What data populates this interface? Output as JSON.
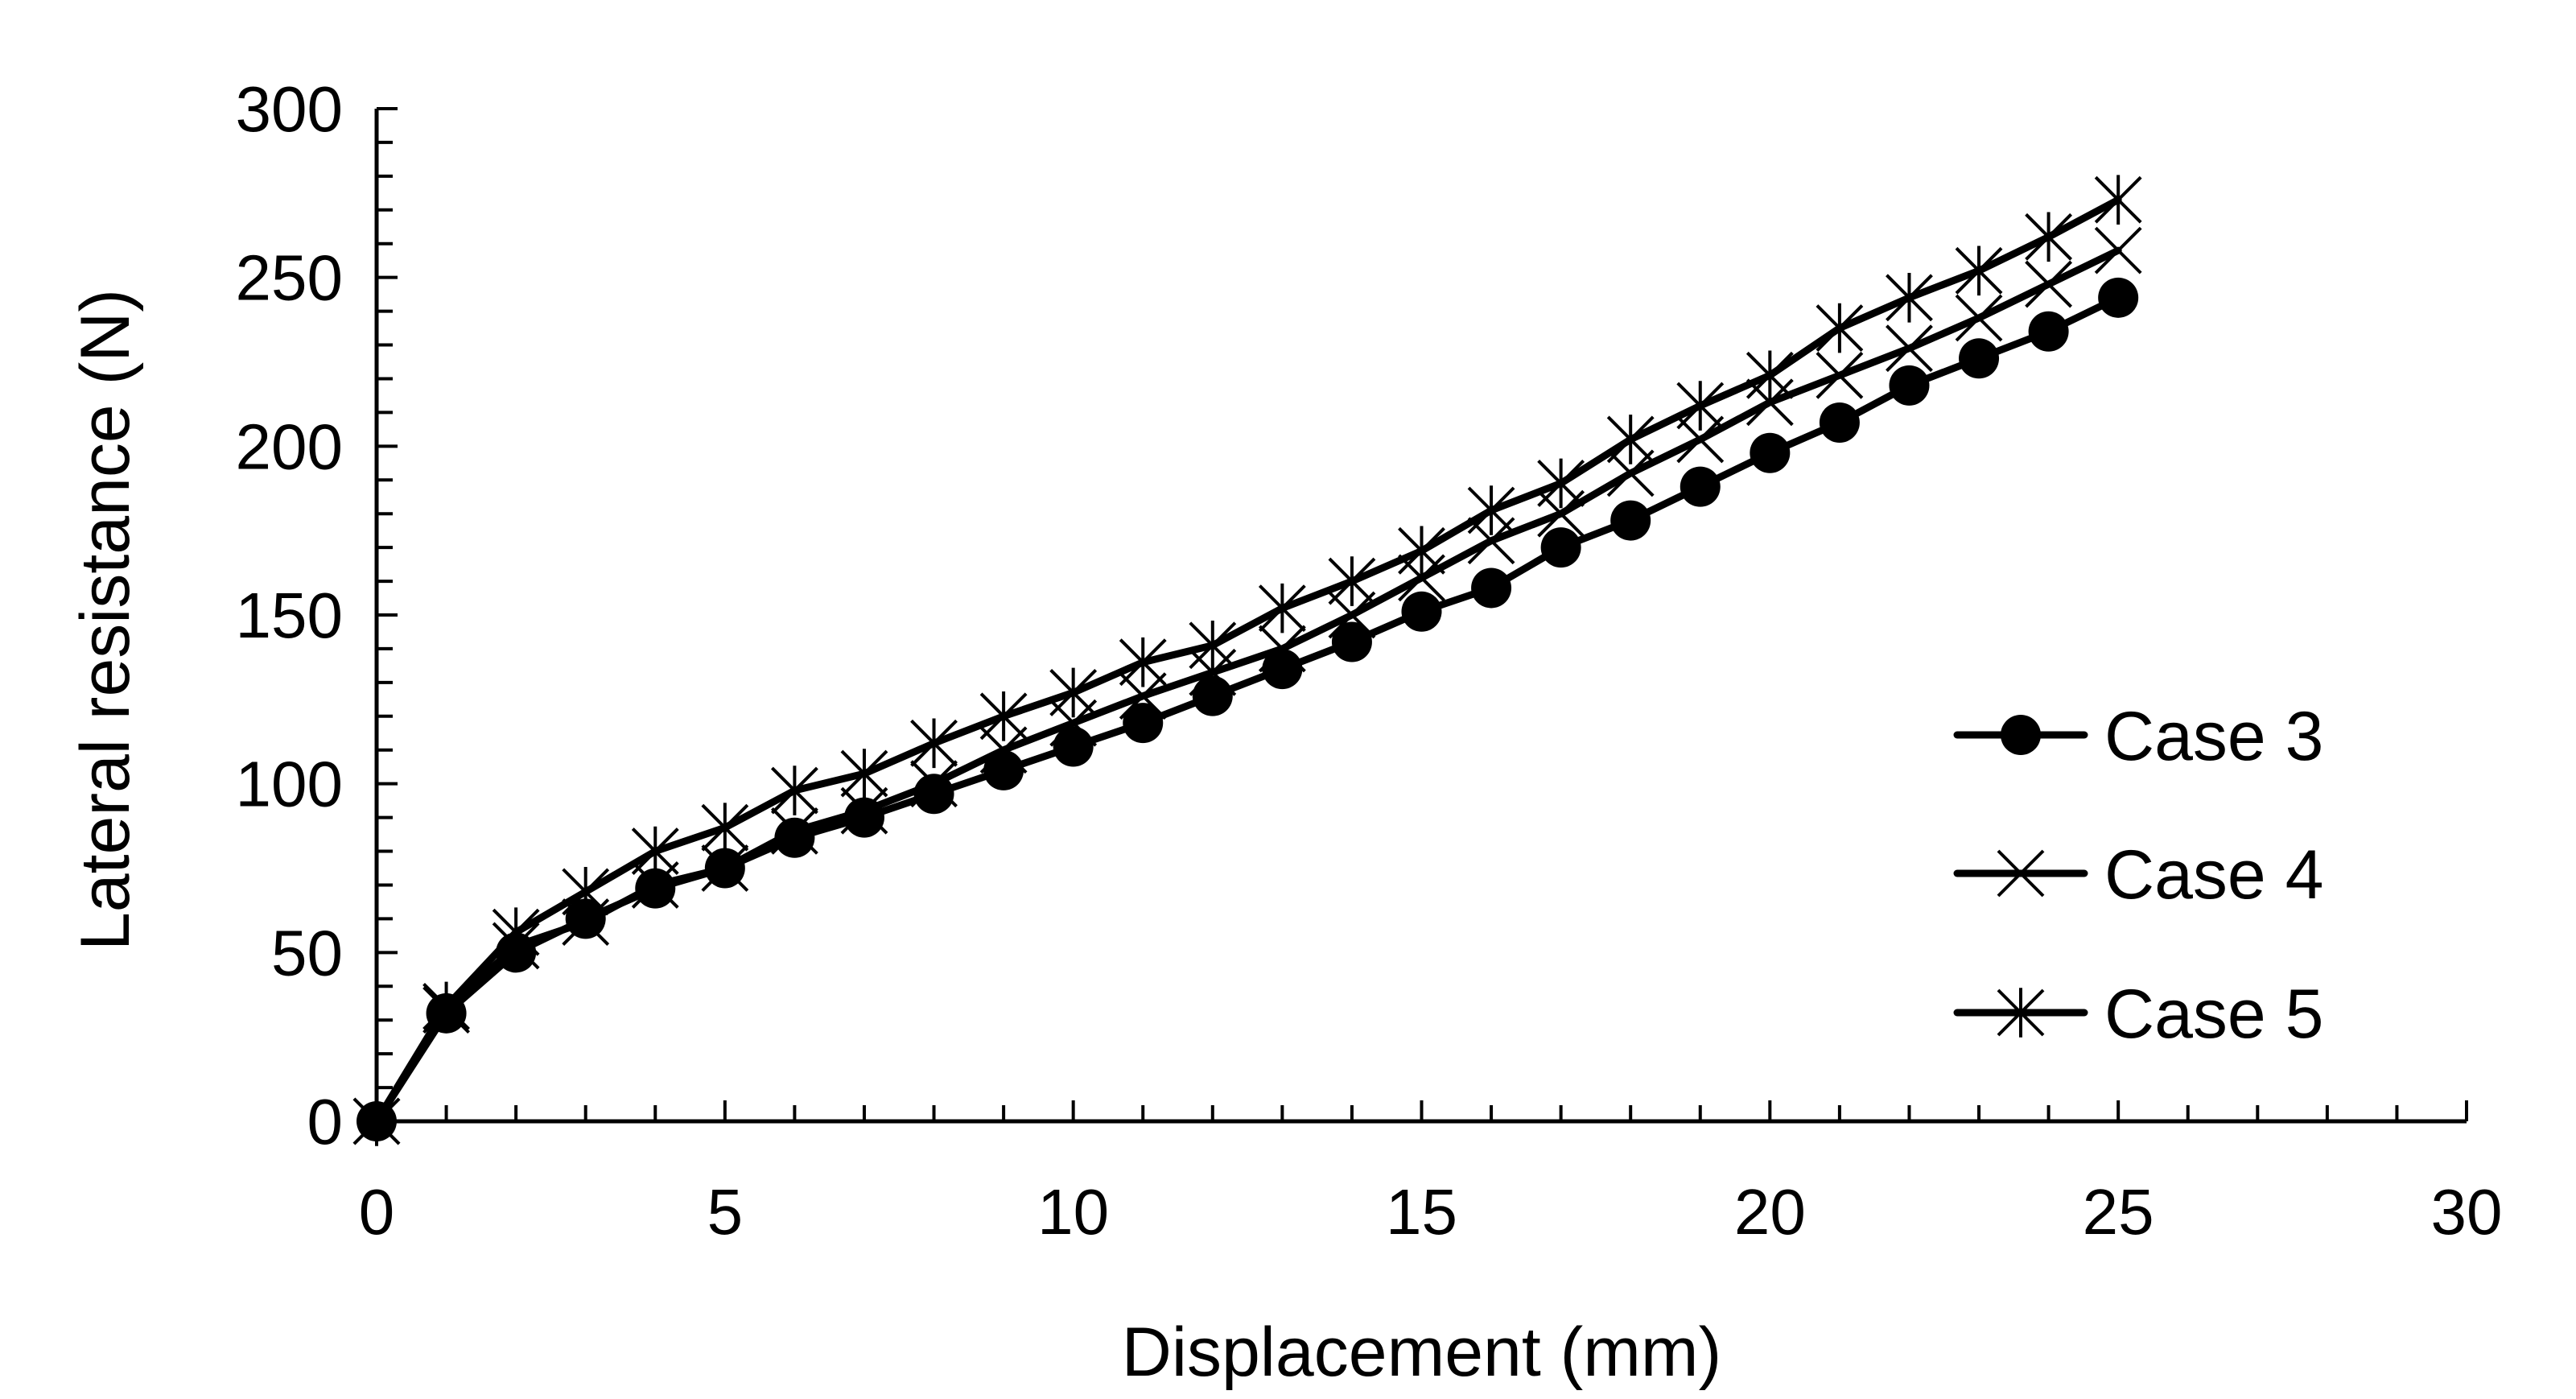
{
  "chart_data": {
    "type": "line",
    "title": "",
    "xlabel": "Displacement (mm)",
    "ylabel": "Lateral resistance (N)",
    "xlim": [
      0,
      30
    ],
    "ylim": [
      0,
      300
    ],
    "xticks": [
      0,
      5,
      10,
      15,
      20,
      25,
      30
    ],
    "yticks": [
      0,
      50,
      100,
      150,
      200,
      250,
      300
    ],
    "x_tick_labels": [
      "0",
      "5",
      "10",
      "15",
      "20",
      "25",
      "30"
    ],
    "y_tick_labels": [
      "0",
      "50",
      "100",
      "150",
      "200",
      "250",
      "300"
    ],
    "x_minor_step": 1,
    "y_minor_step": 10,
    "grid": false,
    "legend_position": "right",
    "line_color": "#000000",
    "x": [
      0,
      1,
      2,
      3,
      4,
      5,
      6,
      7,
      8,
      9,
      10,
      11,
      12,
      13,
      14,
      15,
      16,
      17,
      18,
      19,
      20,
      21,
      22,
      23,
      24,
      25
    ],
    "series": [
      {
        "name": "Case 3",
        "marker": "circle",
        "values": [
          0,
          32,
          50,
          60,
          69,
          75,
          84,
          90,
          97,
          104,
          111,
          118,
          126,
          134,
          142,
          151,
          158,
          170,
          178,
          188,
          198,
          207,
          218,
          226,
          234,
          244
        ]
      },
      {
        "name": "Case 4",
        "marker": "x",
        "values": [
          0,
          33,
          52,
          59,
          70,
          75,
          86,
          92,
          100,
          110,
          118,
          126,
          133,
          140,
          150,
          161,
          172,
          180,
          192,
          202,
          213,
          221,
          229,
          238,
          248,
          258
        ]
      },
      {
        "name": "Case 5",
        "marker": "asterisk",
        "values": [
          0,
          34,
          56,
          68,
          80,
          87,
          98,
          103,
          112,
          120,
          127,
          136,
          141,
          152,
          160,
          169,
          181,
          189,
          202,
          212,
          221,
          235,
          244,
          252,
          262,
          273
        ]
      }
    ]
  }
}
